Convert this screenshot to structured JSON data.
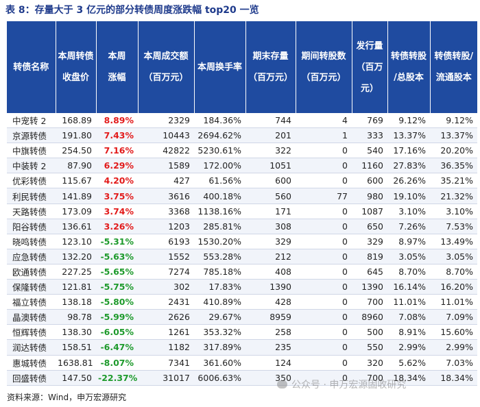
{
  "title": "表 8：存量大于 3 亿元的部分转债周度涨跌幅 top20 一览",
  "headers": [
    [
      "转债名称"
    ],
    [
      "本周转债",
      "收盘价"
    ],
    [
      "本周",
      "涨幅"
    ],
    [
      "本周成交额",
      "（百万元）"
    ],
    [
      "本周换手率"
    ],
    [
      "期末存量",
      "（百万元）"
    ],
    [
      "期间转股数",
      "（百万元）"
    ],
    [
      "发行量",
      "（百万",
      "元）"
    ],
    [
      "转债转股",
      "/总股本"
    ],
    [
      "转债转股/",
      "流通股本"
    ]
  ],
  "rows": [
    [
      "中宠转 2",
      "168.89",
      "8.89%",
      "2329",
      "184.36%",
      "744",
      "4",
      "769",
      "9.12%",
      "9.12%"
    ],
    [
      "京源转债",
      "191.80",
      "7.43%",
      "10443",
      "2694.62%",
      "201",
      "1",
      "333",
      "13.37%",
      "13.37%"
    ],
    [
      "中旗转债",
      "254.50",
      "7.16%",
      "42822",
      "5230.61%",
      "322",
      "0",
      "540",
      "17.16%",
      "20.20%"
    ],
    [
      "中装转 2",
      "87.90",
      "6.29%",
      "1589",
      "172.00%",
      "1051",
      "0",
      "1160",
      "27.83%",
      "36.35%"
    ],
    [
      "优彩转债",
      "115.67",
      "4.20%",
      "427",
      "61.56%",
      "600",
      "0",
      "600",
      "26.26%",
      "35.21%"
    ],
    [
      "利民转债",
      "141.89",
      "3.75%",
      "3616",
      "400.18%",
      "560",
      "77",
      "980",
      "19.10%",
      "21.32%"
    ],
    [
      "天路转债",
      "173.09",
      "3.74%",
      "3368",
      "1138.16%",
      "171",
      "0",
      "1087",
      "3.10%",
      "3.10%"
    ],
    [
      "阳谷转债",
      "136.61",
      "3.26%",
      "1203",
      "285.81%",
      "308",
      "0",
      "650",
      "7.26%",
      "7.53%"
    ],
    [
      "晓鸣转债",
      "123.10",
      "-5.31%",
      "6193",
      "1530.20%",
      "329",
      "0",
      "329",
      "8.97%",
      "13.49%"
    ],
    [
      "应急转债",
      "132.20",
      "-5.63%",
      "1552",
      "553.28%",
      "212",
      "0",
      "819",
      "3.05%",
      "3.05%"
    ],
    [
      "欧通转债",
      "227.25",
      "-5.65%",
      "7274",
      "785.18%",
      "408",
      "0",
      "645",
      "8.70%",
      "8.70%"
    ],
    [
      "保隆转债",
      "121.81",
      "-5.75%",
      "302",
      "17.83%",
      "1390",
      "0",
      "1390",
      "16.14%",
      "16.20%"
    ],
    [
      "福立转债",
      "138.18",
      "-5.80%",
      "2431",
      "410.89%",
      "428",
      "0",
      "700",
      "11.01%",
      "11.01%"
    ],
    [
      "晶澳转债",
      "98.78",
      "-5.99%",
      "2626",
      "29.67%",
      "8959",
      "0",
      "8960",
      "7.08%",
      "7.09%"
    ],
    [
      "恒辉转债",
      "138.30",
      "-6.05%",
      "1261",
      "353.32%",
      "258",
      "0",
      "500",
      "8.91%",
      "15.60%"
    ],
    [
      "润达转债",
      "158.51",
      "-6.47%",
      "1182",
      "317.89%",
      "235",
      "0",
      "550",
      "2.99%",
      "2.99%"
    ],
    [
      "惠城转债",
      "1638.81",
      "-8.07%",
      "7341",
      "361.60%",
      "124",
      "0",
      "320",
      "5.62%",
      "7.03%"
    ],
    [
      "回盛转债",
      "147.50",
      "-22.37%",
      "31017",
      "6006.63%",
      "350",
      "0",
      "700",
      "18.34%",
      "18.34%"
    ]
  ],
  "source": "资料来源：Wind，申万宏源研究",
  "watermark": "公众号 · 申万宏源固收研究",
  "colors": {
    "header_bg": "#1f4ba0",
    "title": "#1f3b8c",
    "up": "#e21b1b",
    "down": "#1e9a2c"
  }
}
